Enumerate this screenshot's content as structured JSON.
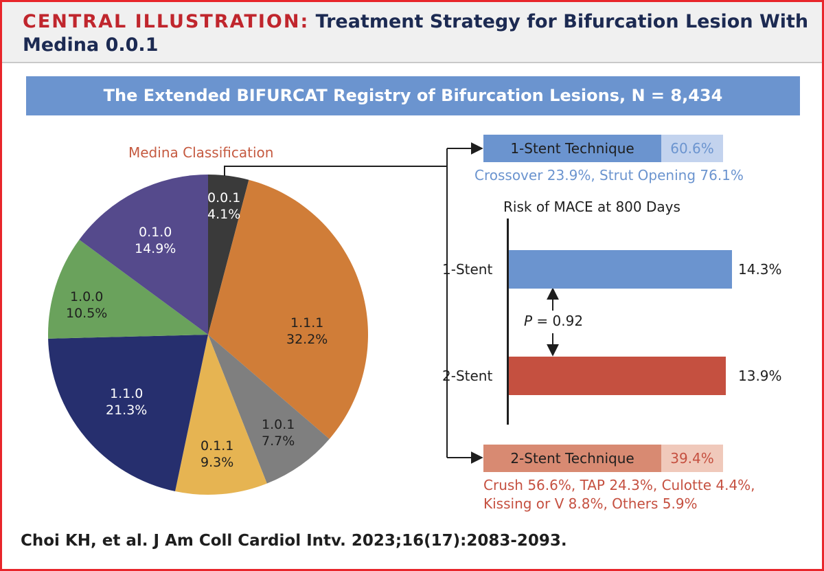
{
  "header": {
    "prefix": "CENTRAL ILLUSTRATION:",
    "title_line1": " Treatment Strategy for Bifurcation Lesion With",
    "title_line2": "Medina 0.0.1"
  },
  "banner": "The Extended BIFURCAT Registry of Bifurcation Lesions, N = 8,434",
  "colors": {
    "red_accent": "#c0262d",
    "navy": "#1c2a52",
    "banner_blue": "#6b94cf",
    "one_stent_blue": "#6b94cf",
    "two_stent_red": "#c55040",
    "one_stent_light": "#c3d3ee",
    "two_stent_light": "#f0c9bb",
    "two_stent_box": "#d88a72"
  },
  "chart_data": [
    {
      "type": "pie",
      "title": "Medina Classification",
      "slices": [
        {
          "label": "0.0.1",
          "value": 4.1,
          "display": "4.1%",
          "color": "#3a3a3a"
        },
        {
          "label": "1.1.1",
          "value": 32.2,
          "display": "32.2%",
          "color": "#d07d38"
        },
        {
          "label": "1.0.1",
          "value": 7.7,
          "display": "7.7%",
          "color": "#7f7f7f"
        },
        {
          "label": "0.1.1",
          "value": 9.3,
          "display": "9.3%",
          "color": "#e6b452"
        },
        {
          "label": "1.1.0",
          "value": 21.3,
          "display": "21.3%",
          "color": "#262f6e"
        },
        {
          "label": "1.0.0",
          "value": 10.5,
          "display": "10.5%",
          "color": "#6aa25c"
        },
        {
          "label": "0.1.0",
          "value": 14.9,
          "display": "14.9%",
          "color": "#554a8c"
        }
      ]
    },
    {
      "type": "bar",
      "title": "Risk of MACE at 800 Days",
      "categories": [
        "1-Stent",
        "2-Stent"
      ],
      "values": [
        14.3,
        13.9
      ],
      "value_labels": [
        "14.3%",
        "13.9%"
      ],
      "annotation": {
        "p_label": "P",
        "p_rest": " = 0.92"
      }
    }
  ],
  "one_stent": {
    "label": "1-Stent Technique",
    "pct": "60.6%",
    "detail": "Crossover 23.9%, Strut Opening 76.1%"
  },
  "two_stent": {
    "label": "2-Stent Technique",
    "pct": "39.4%",
    "detail_line1": "Crush 56.6%, TAP 24.3%, Culotte 4.4%,",
    "detail_line2": "Kissing or V 8.8%, Others 5.9%"
  },
  "citation": "Choi KH, et al. J Am Coll Cardiol Intv. 2023;16(17):2083-2093."
}
